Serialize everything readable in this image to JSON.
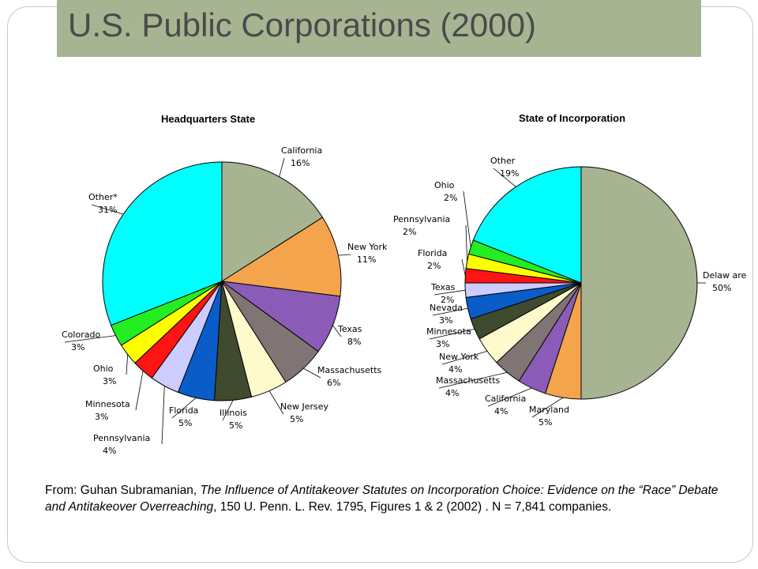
{
  "slide": {
    "title": "U.S. Public Corporations (2000)"
  },
  "caption": {
    "prefix": "From: Guhan Subramanian, ",
    "italic_title": "The Influence of Antitakeover Statutes on Incorporation Choice: Evidence on the “Race” Debate and Antitakeover Overreaching",
    "suffix": ", 150 U. Penn. L. Rev. 1795, Figures 1 & 2 (2002) .  N = 7,841 companies."
  },
  "chart_data": [
    {
      "type": "pie",
      "title": "Headquarters State",
      "slices": [
        {
          "label": "California",
          "pct_label": "16%",
          "value": 16,
          "color": "#a7b492"
        },
        {
          "label": "New York",
          "pct_label": "11%",
          "value": 11,
          "color": "#f4a44c"
        },
        {
          "label": "Texas",
          "pct_label": "8%",
          "value": 8,
          "color": "#8a5cb8"
        },
        {
          "label": "Massachusetts",
          "pct_label": "6%",
          "value": 6,
          "color": "#807474"
        },
        {
          "label": "New Jersey",
          "pct_label": "5%",
          "value": 5,
          "color": "#fffacc"
        },
        {
          "label": "Illinois",
          "pct_label": "5%",
          "value": 5,
          "color": "#3f4a2e"
        },
        {
          "label": "Florida",
          "pct_label": "5%",
          "value": 5,
          "color": "#0a5cc8"
        },
        {
          "label": "Pennsylvania",
          "pct_label": "4%",
          "value": 4,
          "color": "#ccccff"
        },
        {
          "label": "Minnesota",
          "pct_label": "3%",
          "value": 3,
          "color": "#ff1414"
        },
        {
          "label": "Ohio",
          "pct_label": "3%",
          "value": 3,
          "color": "#ffff00"
        },
        {
          "label": "Colorado",
          "pct_label": "3%",
          "value": 3,
          "color": "#22ee22"
        },
        {
          "label": "Other*",
          "pct_label": "31%",
          "value": 31,
          "color": "#00ffff"
        }
      ]
    },
    {
      "type": "pie",
      "title": "State of Incorporation",
      "slices": [
        {
          "label": "Delaw are",
          "pct_label": "50%",
          "value": 50,
          "color": "#a7b492"
        },
        {
          "label": "Maryland",
          "pct_label": "5%",
          "value": 5,
          "color": "#f4a44c"
        },
        {
          "label": "California",
          "pct_label": "4%",
          "value": 4,
          "color": "#8a5cb8"
        },
        {
          "label": "Massachusetts",
          "pct_label": "4%",
          "value": 4,
          "color": "#807474"
        },
        {
          "label": "New York",
          "pct_label": "4%",
          "value": 4,
          "color": "#fffacc"
        },
        {
          "label": "Minnesota",
          "pct_label": "3%",
          "value": 3,
          "color": "#3f4a2e"
        },
        {
          "label": "Nevada",
          "pct_label": "3%",
          "value": 3,
          "color": "#0a5cc8"
        },
        {
          "label": "Texas",
          "pct_label": "2%",
          "value": 2,
          "color": "#ccccff"
        },
        {
          "label": "Florida",
          "pct_label": "2%",
          "value": 2,
          "color": "#ff1414"
        },
        {
          "label": "Pennsylvania",
          "pct_label": "2%",
          "value": 2,
          "color": "#ffff00"
        },
        {
          "label": "Ohio",
          "pct_label": "2%",
          "value": 2,
          "color": "#22ee22"
        },
        {
          "label": "Other",
          "pct_label": "19%",
          "value": 19,
          "color": "#00ffff"
        }
      ]
    }
  ]
}
